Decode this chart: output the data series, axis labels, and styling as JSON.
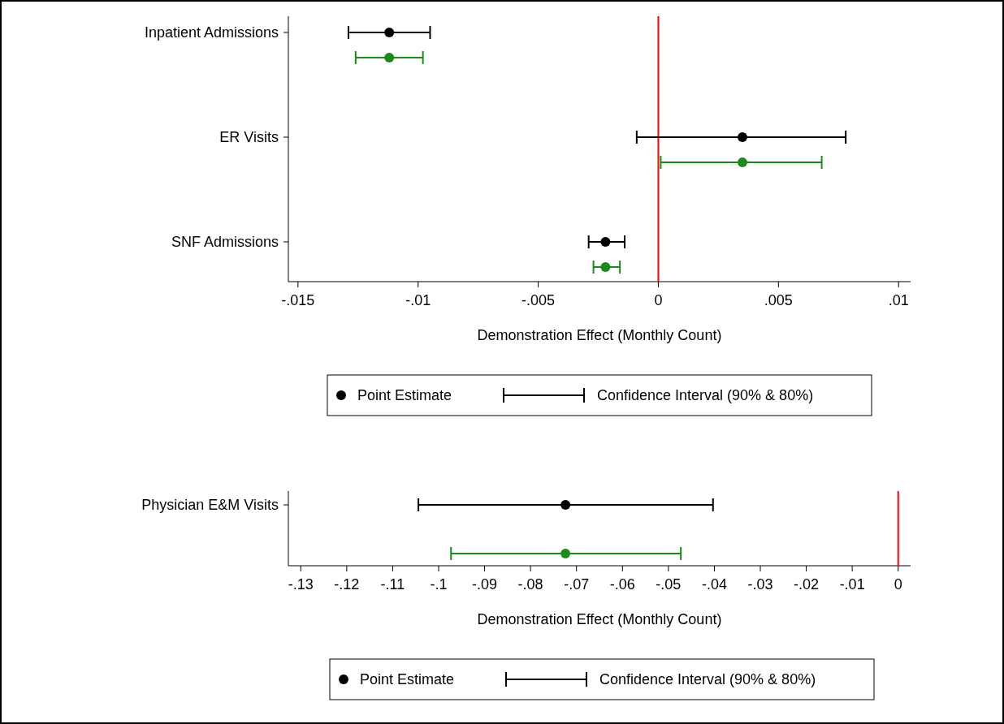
{
  "chart_data": [
    {
      "type": "scatter",
      "orientation": "horizontal",
      "marker": "circle",
      "categories": [
        "Inpatient Admissions",
        "ER Visits",
        "SNF Admissions"
      ],
      "series": [
        {
          "color": "#000000",
          "values": [
            -0.0112,
            0.0035,
            -0.0022
          ],
          "errors": [
            [
              -0.0129,
              -0.0095
            ],
            [
              -0.0009,
              0.0078
            ],
            [
              -0.0029,
              -0.0014
            ]
          ]
        },
        {
          "color": "#1a8a1a",
          "values": [
            -0.0112,
            0.0035,
            -0.0022
          ],
          "errors": [
            [
              -0.0126,
              -0.0098
            ],
            [
              0.0001,
              0.0068
            ],
            [
              -0.0027,
              -0.0016
            ]
          ]
        }
      ],
      "xlim": [
        -0.0154,
        0.0105
      ],
      "xticks": [
        {
          "value": -0.015,
          "label": "-.015"
        },
        {
          "value": -0.01,
          "label": "-.01"
        },
        {
          "value": -0.005,
          "label": "-.005"
        },
        0,
        {
          "value": 0.005,
          "label": ".005"
        },
        {
          "value": 0.01,
          "label": ".01"
        }
      ],
      "xlabel": "Demonstration Effect (Monthly Count)",
      "ref_lines": [
        {
          "axis": "x",
          "value": 0,
          "color": "#ff0000"
        }
      ],
      "annotations": [
        "Point Estimate",
        "Confidence Interval (90% & 80%)"
      ]
    },
    {
      "type": "scatter",
      "orientation": "horizontal",
      "marker": "circle",
      "categories": [
        "Physician E&M Visits"
      ],
      "series": [
        {
          "color": "#000000",
          "values": [
            -0.0724
          ],
          "errors": [
            [
              -0.1044,
              -0.0403
            ]
          ]
        },
        {
          "color": "#1a8a1a",
          "values": [
            -0.0724
          ],
          "errors": [
            [
              -0.0973,
              -0.0473
            ]
          ]
        }
      ],
      "xlim": [
        -0.1327,
        0.0027
      ],
      "xticks": [
        {
          "value": -0.13,
          "label": "-.13"
        },
        {
          "value": -0.12,
          "label": "-.12"
        },
        {
          "value": -0.11,
          "label": "-.11"
        },
        {
          "value": -0.1,
          "label": "-.1"
        },
        {
          "value": -0.09,
          "label": "-.09"
        },
        {
          "value": -0.08,
          "label": "-.08"
        },
        {
          "value": -0.07,
          "label": "-.07"
        },
        {
          "value": -0.06,
          "label": "-.06"
        },
        {
          "value": -0.05,
          "label": "-.05"
        },
        {
          "value": -0.04,
          "label": "-.04"
        },
        {
          "value": -0.03,
          "label": "-.03"
        },
        {
          "value": -0.02,
          "label": "-.02"
        },
        {
          "value": -0.01,
          "label": "-.01"
        },
        0
      ],
      "xlabel": "Demonstration Effect (Monthly Count)",
      "ref_lines": [
        {
          "axis": "x",
          "value": 0,
          "color": "#ff0000"
        }
      ],
      "annotations": [
        "Point Estimate",
        "Confidence Interval (90% & 80%)"
      ]
    }
  ]
}
